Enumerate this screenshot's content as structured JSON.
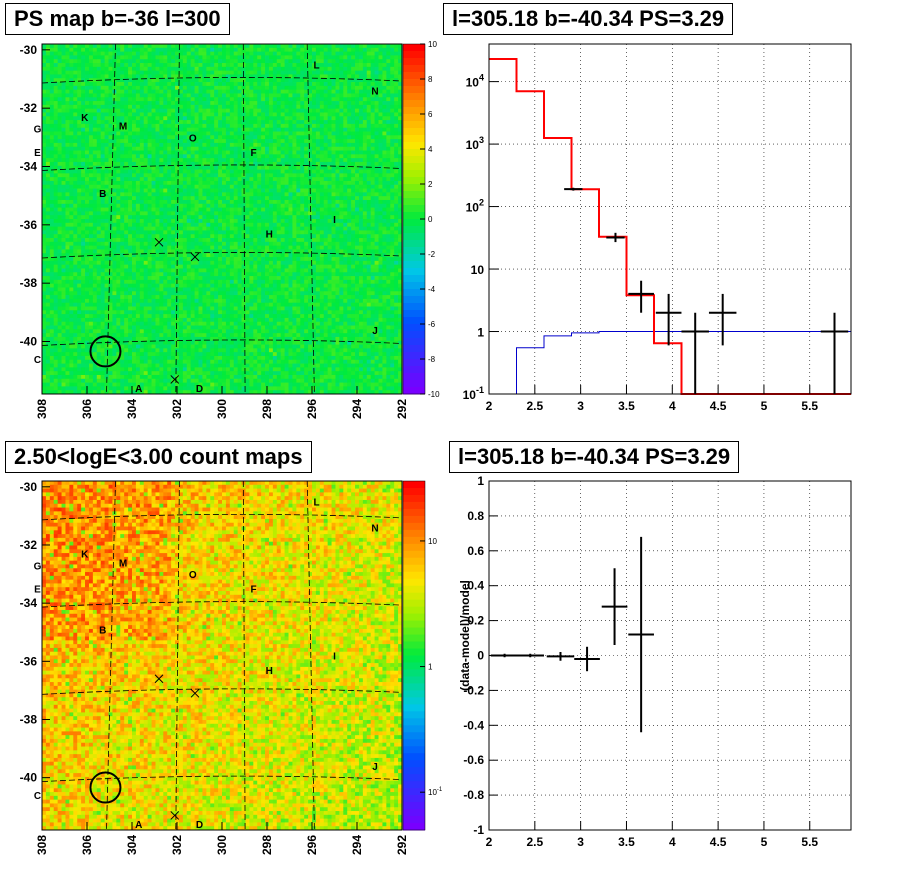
{
  "panels": {
    "ps_map": {
      "title": "PS map b=-36 l=300",
      "y_ticks": [
        "-30",
        "-32",
        "-34",
        "-36",
        "-38",
        "-40"
      ],
      "x_ticks": [
        "308",
        "306",
        "304",
        "302",
        "300",
        "298",
        "296",
        "294",
        "292"
      ],
      "colorbar_ticks": [
        "10",
        "8",
        "6",
        "4",
        "2",
        "0",
        "-2",
        "-4",
        "-6",
        "-8",
        "-10"
      ],
      "source_labels": [
        "L",
        "N",
        "K",
        "M",
        "G",
        "O",
        "E",
        "F",
        "B",
        "I",
        "H",
        "J",
        "C",
        "A",
        "D"
      ]
    },
    "spectrum": {
      "title": "l=305.18 b=-40.34 PS=3.29",
      "x_ticks": [
        "2",
        "2.5",
        "3",
        "3.5",
        "4",
        "4.5",
        "5",
        "5.5"
      ],
      "y_ticks": [
        "10^4",
        "10^3",
        "10^2",
        "10",
        "1",
        "10^-1"
      ]
    },
    "count_map": {
      "title": "2.50<logE<3.00 count maps",
      "y_ticks": [
        "-30",
        "-32",
        "-34",
        "-36",
        "-38",
        "-40"
      ],
      "x_ticks": [
        "308",
        "306",
        "304",
        "302",
        "300",
        "298",
        "296",
        "294",
        "292"
      ],
      "colorbar_ticks": [
        "10",
        "1",
        "10^-1"
      ],
      "source_labels": [
        "L",
        "N",
        "K",
        "M",
        "G",
        "O",
        "E",
        "F",
        "B",
        "I",
        "H",
        "J",
        "C",
        "A",
        "D"
      ]
    },
    "residual": {
      "title": "l=305.18 b=-40.34 PS=3.29",
      "ylabel": "(data-model)/model",
      "x_ticks": [
        "2",
        "2.5",
        "3",
        "3.5",
        "4",
        "4.5",
        "5",
        "5.5"
      ],
      "y_ticks": [
        "1",
        "0.8",
        "0.6",
        "0.4",
        "0.2",
        "0",
        "-0.2",
        "-0.4",
        "-0.6",
        "-0.8",
        "-1"
      ]
    }
  },
  "colors": {
    "model_red": "#ff0000",
    "background_blue": "#0000cc",
    "data_black": "#000000"
  },
  "chart_data": [
    {
      "type": "heatmap",
      "title": "PS map b=-36 l=300",
      "xlabel": "",
      "ylabel": "",
      "xlim": [
        308,
        292
      ],
      "ylim": [
        -41.8,
        -29.8
      ],
      "z_range": [
        -10,
        10
      ],
      "colorbar": "rainbow",
      "typical_value": 0,
      "marked_position": {
        "l": 305.18,
        "b": -40.34
      },
      "sources": [
        {
          "name": "L",
          "l": 295.8,
          "b": -30.5
        },
        {
          "name": "N",
          "l": 293.2,
          "b": -31.4
        },
        {
          "name": "K",
          "l": 306.1,
          "b": -32.3
        },
        {
          "name": "M",
          "l": 304.4,
          "b": -32.6
        },
        {
          "name": "G",
          "l": 308.2,
          "b": -32.7
        },
        {
          "name": "O",
          "l": 301.3,
          "b": -33.0
        },
        {
          "name": "E",
          "l": 308.2,
          "b": -33.5
        },
        {
          "name": "F",
          "l": 298.6,
          "b": -33.5
        },
        {
          "name": "B",
          "l": 305.3,
          "b": -34.9
        },
        {
          "name": "I",
          "l": 295.0,
          "b": -35.8
        },
        {
          "name": "H",
          "l": 297.9,
          "b": -36.3
        },
        {
          "name": "J",
          "l": 293.2,
          "b": -39.6
        },
        {
          "name": "C",
          "l": 308.2,
          "b": -40.6
        },
        {
          "name": "A",
          "l": 303.7,
          "b": -41.6
        },
        {
          "name": "D",
          "l": 301.0,
          "b": -41.6
        }
      ]
    },
    {
      "type": "line",
      "title": "l=305.18 b=-40.34 PS=3.29",
      "xlabel": "",
      "ylabel": "",
      "xlim": [
        2,
        5.95
      ],
      "ylim": [
        0.1,
        40000
      ],
      "yscale": "log",
      "bin_edges": [
        2.0,
        2.3,
        2.6,
        2.9,
        3.2,
        3.5,
        3.8,
        4.1,
        4.4,
        4.7,
        5.0,
        5.3,
        5.6,
        5.95
      ],
      "series": [
        {
          "color": "red",
          "values": [
            23000,
            7000,
            1250,
            190,
            33,
            3.8,
            0.65,
            0.1,
            0.1,
            0.1,
            0.1,
            0.1,
            0.1
          ]
        },
        {
          "color": "blue",
          "values": [
            0.1,
            0.55,
            0.85,
            0.95,
            1.0,
            1.0,
            1.0,
            1.0,
            1.0,
            1.0,
            1.0,
            1.0,
            1.0
          ]
        }
      ],
      "data_points": [
        {
          "x": 2.92,
          "y": 190,
          "xerr": 0.1,
          "ylo": 180,
          "yhi": 200
        },
        {
          "x": 3.38,
          "y": 32,
          "xerr": 0.1,
          "ylo": 27,
          "yhi": 38
        },
        {
          "x": 3.66,
          "y": 4.0,
          "xerr": 0.14,
          "ylo": 2.0,
          "yhi": 6.5
        },
        {
          "x": 3.96,
          "y": 2.0,
          "xerr": 0.14,
          "ylo": 0.6,
          "yhi": 4.0
        },
        {
          "x": 4.25,
          "y": 1.0,
          "xerr": 0.15,
          "ylo": 0.1,
          "yhi": 2.0
        },
        {
          "x": 4.55,
          "y": 2.0,
          "xerr": 0.15,
          "ylo": 0.6,
          "yhi": 4.0
        },
        {
          "x": 5.77,
          "y": 1.0,
          "xerr": 0.15,
          "ylo": 0.1,
          "yhi": 2.0
        }
      ]
    },
    {
      "type": "heatmap",
      "title": "2.50<logE<3.00 count maps",
      "xlabel": "",
      "ylabel": "",
      "xlim": [
        308,
        292
      ],
      "ylim": [
        -41.8,
        -29.8
      ],
      "z_range": [
        0.05,
        30
      ],
      "zscale": "log",
      "colorbar": "rainbow",
      "marked_position": {
        "l": 305.18,
        "b": -40.34
      }
    },
    {
      "type": "scatter",
      "title": "l=305.18 b=-40.34 PS=3.29",
      "xlabel": "",
      "ylabel": "(data-model)/model",
      "xlim": [
        2,
        5.95
      ],
      "ylim": [
        -1,
        1
      ],
      "points": [
        {
          "x": 2.17,
          "y": 0.0,
          "xerr": 0.15,
          "yerr": 0.01
        },
        {
          "x": 2.45,
          "y": 0.0,
          "xerr": 0.15,
          "yerr": 0.01
        },
        {
          "x": 2.78,
          "y": -0.005,
          "xerr": 0.15,
          "yerr": 0.025
        },
        {
          "x": 3.07,
          "y": -0.02,
          "xerr": 0.14,
          "yerr": 0.07
        },
        {
          "x": 3.37,
          "y": 0.28,
          "xerr": 0.14,
          "yerr": 0.22
        },
        {
          "x": 3.66,
          "y": 0.12,
          "xerr": 0.14,
          "yerr": 0.56
        }
      ]
    }
  ]
}
